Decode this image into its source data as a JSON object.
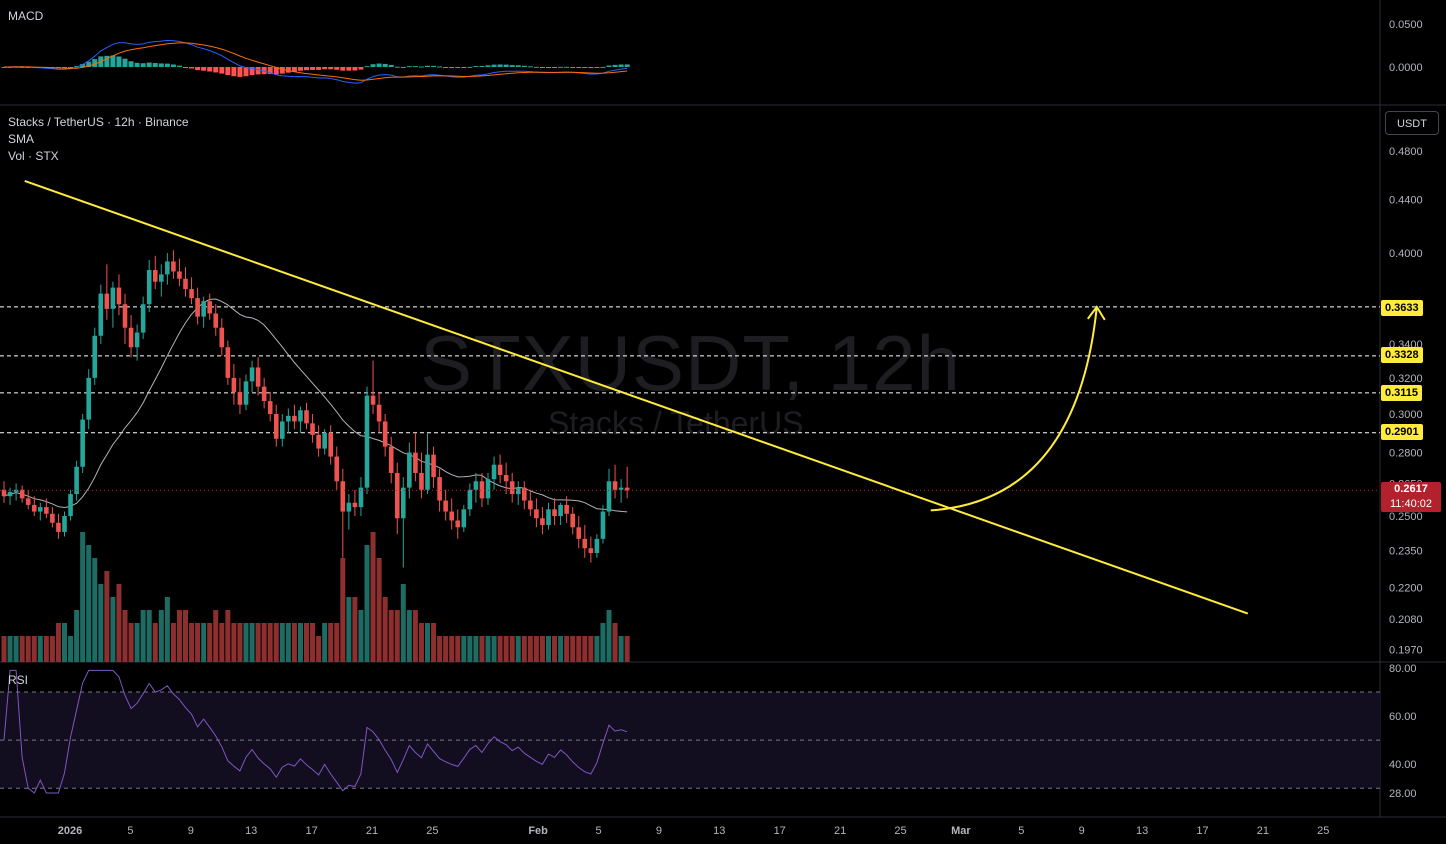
{
  "watermark": {
    "symbol": "STXUSDT, 12h",
    "name": "Stacks / TetherUS"
  },
  "legend": {
    "title": "Stacks / TetherUS · 12h · Binance",
    "sma": "SMA",
    "vol": "Vol · STX"
  },
  "macd_label": "MACD",
  "rsi_label": "RSI",
  "unit_button": "USDT",
  "current_price": {
    "value": "0.2617",
    "countdown": "11:40:02"
  },
  "level_labels": [
    "0.3633",
    "0.3328",
    "0.3115",
    "0.2901"
  ],
  "colors": {
    "up": "#26a69a",
    "down": "#ef5350",
    "trend": "#ffeb3b",
    "sma": "#d1d4dc",
    "rsi": "#7e57c2",
    "macd": "#2962ff",
    "signal": "#ff6d00"
  },
  "chart_data": {
    "type": "candlestick",
    "symbol": "STXUSDT",
    "timeframe": "12h",
    "exchange": "Binance",
    "price_scale": {
      "ticks": [
        "0.4800",
        "0.4400",
        "0.4000",
        "0.3400",
        "0.3200",
        "0.3000",
        "0.2800",
        "0.2650",
        "0.2500",
        "0.2350",
        "0.2200",
        "0.2080",
        "0.1970"
      ],
      "log": true
    },
    "x_ticks": [
      "2026",
      "5",
      "9",
      "13",
      "17",
      "21",
      "25",
      "Feb",
      "5",
      "9",
      "13",
      "17",
      "21",
      "25",
      "Mar",
      "5",
      "9",
      "13",
      "17",
      "21",
      "25"
    ],
    "horizontal_levels": [
      0.3633,
      0.3328,
      0.3115,
      0.2901
    ],
    "trendline": {
      "from": [
        "2025-12-29",
        0.455
      ],
      "to": [
        "2026-03-20",
        0.21
      ]
    },
    "projection_arrow": {
      "from": [
        "2026-02-27",
        0.2525
      ],
      "to": [
        "2026-03-10",
        0.3633
      ]
    },
    "ohlc": [
      [
        0.262,
        0.266,
        0.256,
        0.259
      ],
      [
        0.259,
        0.263,
        0.255,
        0.261
      ],
      [
        0.261,
        0.265,
        0.257,
        0.262
      ],
      [
        0.262,
        0.264,
        0.256,
        0.258
      ],
      [
        0.258,
        0.262,
        0.253,
        0.255
      ],
      [
        0.255,
        0.259,
        0.25,
        0.252
      ],
      [
        0.252,
        0.256,
        0.248,
        0.254
      ],
      [
        0.254,
        0.258,
        0.249,
        0.251
      ],
      [
        0.251,
        0.254,
        0.245,
        0.247
      ],
      [
        0.247,
        0.251,
        0.24,
        0.243
      ],
      [
        0.243,
        0.252,
        0.241,
        0.25
      ],
      [
        0.25,
        0.262,
        0.248,
        0.26
      ],
      [
        0.26,
        0.276,
        0.257,
        0.273
      ],
      [
        0.273,
        0.3,
        0.27,
        0.297
      ],
      [
        0.297,
        0.325,
        0.292,
        0.32
      ],
      [
        0.32,
        0.35,
        0.316,
        0.345
      ],
      [
        0.345,
        0.378,
        0.34,
        0.372
      ],
      [
        0.372,
        0.392,
        0.355,
        0.362
      ],
      [
        0.362,
        0.38,
        0.35,
        0.376
      ],
      [
        0.376,
        0.385,
        0.358,
        0.365
      ],
      [
        0.365,
        0.372,
        0.34,
        0.35
      ],
      [
        0.35,
        0.358,
        0.332,
        0.338
      ],
      [
        0.338,
        0.352,
        0.33,
        0.347
      ],
      [
        0.347,
        0.37,
        0.343,
        0.365
      ],
      [
        0.365,
        0.395,
        0.36,
        0.388
      ],
      [
        0.388,
        0.398,
        0.375,
        0.38
      ],
      [
        0.38,
        0.392,
        0.37,
        0.385
      ],
      [
        0.385,
        0.4,
        0.378,
        0.394
      ],
      [
        0.394,
        0.402,
        0.382,
        0.387
      ],
      [
        0.387,
        0.396,
        0.377,
        0.382
      ],
      [
        0.382,
        0.39,
        0.37,
        0.375
      ],
      [
        0.375,
        0.383,
        0.365,
        0.369
      ],
      [
        0.369,
        0.376,
        0.352,
        0.357
      ],
      [
        0.357,
        0.37,
        0.35,
        0.367
      ],
      [
        0.367,
        0.372,
        0.355,
        0.359
      ],
      [
        0.359,
        0.365,
        0.345,
        0.35
      ],
      [
        0.35,
        0.356,
        0.333,
        0.338
      ],
      [
        0.338,
        0.342,
        0.316,
        0.32
      ],
      [
        0.32,
        0.328,
        0.305,
        0.312
      ],
      [
        0.312,
        0.32,
        0.3,
        0.305
      ],
      [
        0.305,
        0.322,
        0.302,
        0.318
      ],
      [
        0.318,
        0.33,
        0.312,
        0.326
      ],
      [
        0.326,
        0.332,
        0.31,
        0.315
      ],
      [
        0.315,
        0.32,
        0.303,
        0.307
      ],
      [
        0.307,
        0.312,
        0.296,
        0.3
      ],
      [
        0.3,
        0.305,
        0.283,
        0.287
      ],
      [
        0.287,
        0.3,
        0.283,
        0.296
      ],
      [
        0.296,
        0.303,
        0.29,
        0.299
      ],
      [
        0.299,
        0.305,
        0.292,
        0.296
      ],
      [
        0.296,
        0.304,
        0.29,
        0.302
      ],
      [
        0.302,
        0.306,
        0.292,
        0.295
      ],
      [
        0.295,
        0.3,
        0.285,
        0.289
      ],
      [
        0.289,
        0.294,
        0.278,
        0.282
      ],
      [
        0.282,
        0.292,
        0.279,
        0.29
      ],
      [
        0.29,
        0.294,
        0.274,
        0.278
      ],
      [
        0.278,
        0.283,
        0.262,
        0.266
      ],
      [
        0.266,
        0.272,
        0.232,
        0.252
      ],
      [
        0.252,
        0.26,
        0.244,
        0.256
      ],
      [
        0.256,
        0.262,
        0.25,
        0.254
      ],
      [
        0.254,
        0.268,
        0.25,
        0.263
      ],
      [
        0.263,
        0.315,
        0.26,
        0.31
      ],
      [
        0.31,
        0.33,
        0.3,
        0.305
      ],
      [
        0.305,
        0.312,
        0.29,
        0.296
      ],
      [
        0.296,
        0.3,
        0.278,
        0.283
      ],
      [
        0.283,
        0.288,
        0.265,
        0.27
      ],
      [
        0.27,
        0.275,
        0.242,
        0.249
      ],
      [
        0.249,
        0.268,
        0.228,
        0.263
      ],
      [
        0.263,
        0.285,
        0.258,
        0.28
      ],
      [
        0.28,
        0.29,
        0.266,
        0.27
      ],
      [
        0.27,
        0.28,
        0.258,
        0.262
      ],
      [
        0.262,
        0.29,
        0.26,
        0.279
      ],
      [
        0.279,
        0.283,
        0.263,
        0.268
      ],
      [
        0.268,
        0.272,
        0.252,
        0.257
      ],
      [
        0.257,
        0.262,
        0.248,
        0.252
      ],
      [
        0.252,
        0.258,
        0.244,
        0.248
      ],
      [
        0.248,
        0.253,
        0.24,
        0.245
      ],
      [
        0.245,
        0.255,
        0.243,
        0.253
      ],
      [
        0.253,
        0.265,
        0.25,
        0.262
      ],
      [
        0.262,
        0.27,
        0.256,
        0.266
      ],
      [
        0.266,
        0.27,
        0.254,
        0.258
      ],
      [
        0.258,
        0.27,
        0.255,
        0.267
      ],
      [
        0.267,
        0.278,
        0.262,
        0.274
      ],
      [
        0.274,
        0.279,
        0.265,
        0.269
      ],
      [
        0.269,
        0.275,
        0.26,
        0.266
      ],
      [
        0.266,
        0.27,
        0.256,
        0.26
      ],
      [
        0.26,
        0.266,
        0.255,
        0.263
      ],
      [
        0.263,
        0.266,
        0.253,
        0.257
      ],
      [
        0.257,
        0.262,
        0.25,
        0.253
      ],
      [
        0.253,
        0.258,
        0.245,
        0.249
      ],
      [
        0.249,
        0.254,
        0.242,
        0.246
      ],
      [
        0.246,
        0.256,
        0.244,
        0.253
      ],
      [
        0.253,
        0.258,
        0.246,
        0.25
      ],
      [
        0.25,
        0.256,
        0.246,
        0.255
      ],
      [
        0.255,
        0.259,
        0.247,
        0.251
      ],
      [
        0.251,
        0.254,
        0.242,
        0.245
      ],
      [
        0.245,
        0.25,
        0.236,
        0.24
      ],
      [
        0.24,
        0.246,
        0.232,
        0.236
      ],
      [
        0.236,
        0.241,
        0.23,
        0.234
      ],
      [
        0.234,
        0.242,
        0.232,
        0.24
      ],
      [
        0.24,
        0.255,
        0.238,
        0.252
      ],
      [
        0.252,
        0.272,
        0.25,
        0.266
      ],
      [
        0.266,
        0.274,
        0.258,
        0.262
      ],
      [
        0.262,
        0.267,
        0.256,
        0.263
      ],
      [
        0.263,
        0.273,
        0.258,
        0.2617
      ]
    ],
    "volume": [
      2,
      2,
      2,
      2,
      2,
      2,
      2,
      2,
      2,
      3,
      3,
      2,
      4,
      10,
      9,
      8,
      6,
      7,
      5,
      6,
      4,
      3,
      3,
      4,
      4,
      3,
      4,
      5,
      3,
      4,
      4,
      3,
      3,
      3,
      3,
      4,
      3,
      4,
      3,
      3,
      3,
      3,
      3,
      3,
      3,
      3,
      3,
      3,
      3,
      3,
      3,
      3,
      2,
      3,
      3,
      3,
      8,
      5,
      5,
      4,
      9,
      10,
      8,
      5,
      4,
      4,
      6,
      4,
      4,
      3,
      3,
      3,
      2,
      2,
      2,
      2,
      2,
      2,
      2,
      2,
      2,
      2,
      2,
      2,
      2,
      2,
      2,
      2,
      2,
      2,
      2,
      2,
      2,
      2,
      2,
      2,
      2,
      2,
      2,
      3,
      4,
      3,
      2,
      2
    ]
  }
}
